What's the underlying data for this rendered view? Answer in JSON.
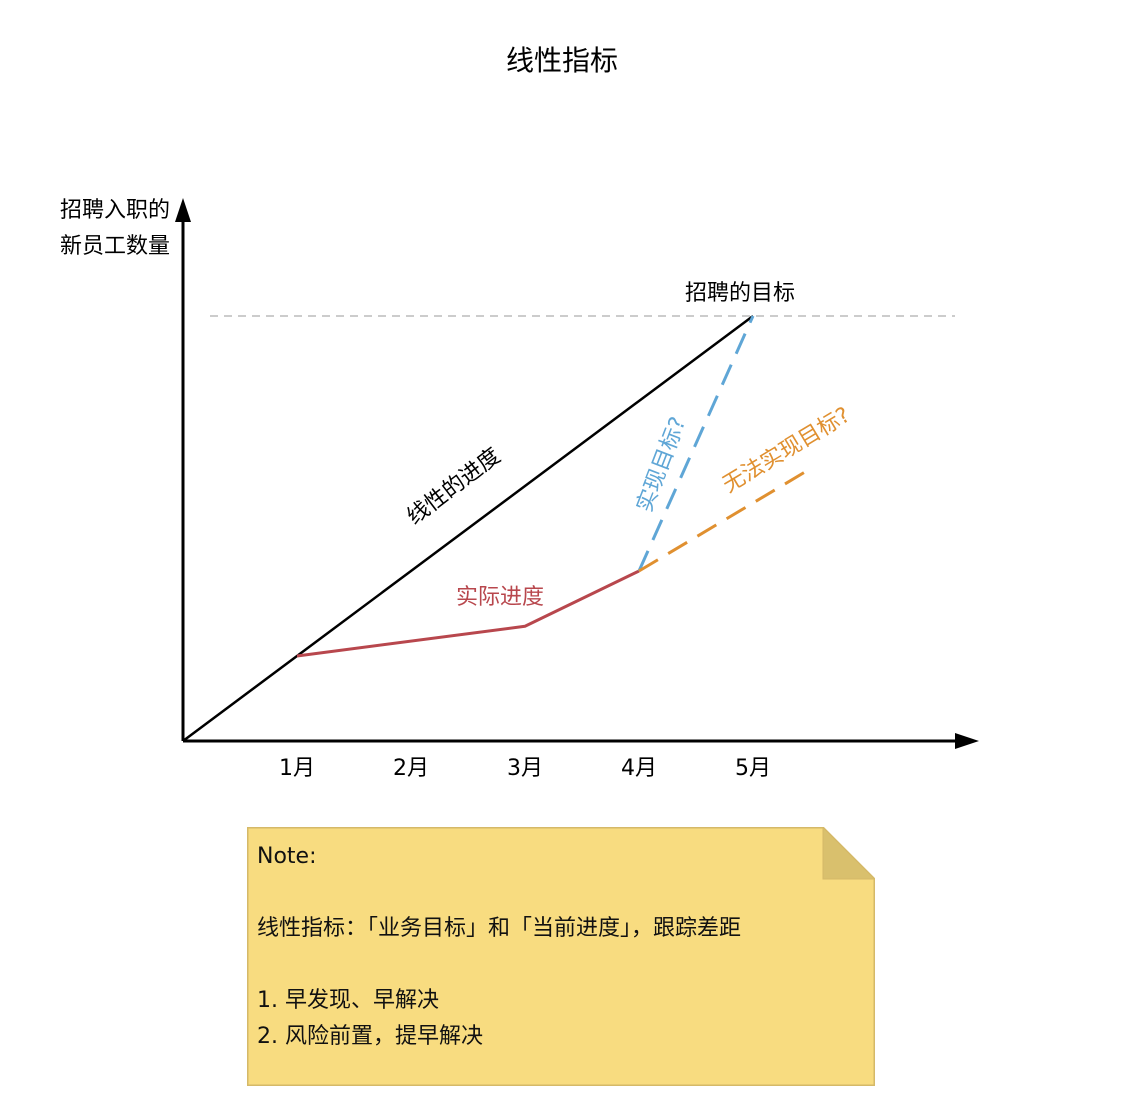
{
  "colors": {
    "axis": "#000000",
    "linear": "#000000",
    "target_line": "#cccccc",
    "actual": "#b8474d",
    "achieve": "#5fa6d6",
    "fail": "#e09030",
    "note_bg": "#f8dc80",
    "note_border": "#d5b968",
    "note_fold": "#d9c06d"
  },
  "chart_data": {
    "type": "line",
    "title": "线性指标",
    "ylabel": [
      "招聘入职的",
      "新员工数量"
    ],
    "categories": [
      "1月",
      "2月",
      "3月",
      "4月",
      "5月"
    ],
    "target_label": "招聘的目标",
    "target_value": 100,
    "ylim": [
      0,
      100
    ],
    "series": [
      {
        "name": "线性的进度",
        "key": "linear",
        "style": "solid",
        "x": [
          0,
          1,
          2,
          3,
          4,
          5
        ],
        "y": [
          0,
          20,
          40,
          60,
          80,
          100
        ]
      },
      {
        "name": "实际进度",
        "key": "actual",
        "style": "solid",
        "x": [
          1,
          3,
          4
        ],
        "y": [
          20,
          27,
          40
        ]
      },
      {
        "name": "实现目标?",
        "key": "achieve",
        "style": "dashed",
        "x": [
          4,
          5
        ],
        "y": [
          40,
          100
        ]
      },
      {
        "name": "无法实现目标?",
        "key": "fail",
        "style": "dashed",
        "x": [
          4,
          5.5
        ],
        "y": [
          40,
          64
        ]
      }
    ]
  },
  "note": {
    "lines": [
      "Note:",
      "",
      "线性指标：「业务目标」和「当前进度」，跟踪差距",
      "",
      "1. 早发现、早解决",
      "2. 风险前置，提早解决"
    ]
  }
}
